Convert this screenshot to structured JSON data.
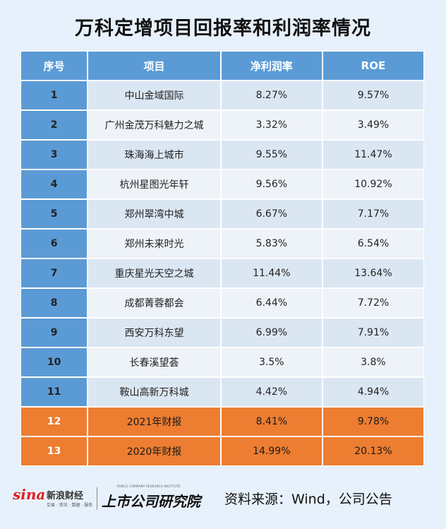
{
  "title": "万科定增项目回报率和利润率情况",
  "table": {
    "headers": [
      "序号",
      "项目",
      "净利润率",
      "ROE"
    ],
    "rows": [
      {
        "no": "1",
        "name": "中山金域国际",
        "margin": "8.27%",
        "roe": "9.57%"
      },
      {
        "no": "2",
        "name": "广州金茂万科魅力之城",
        "margin": "3.32%",
        "roe": "3.49%"
      },
      {
        "no": "3",
        "name": "珠海海上城市",
        "margin": "9.55%",
        "roe": "11.47%"
      },
      {
        "no": "4",
        "name": "杭州星图光年轩",
        "margin": "9.56%",
        "roe": "10.92%"
      },
      {
        "no": "5",
        "name": "郑州翠湾中城",
        "margin": "6.67%",
        "roe": "7.17%"
      },
      {
        "no": "6",
        "name": "郑州未来时光",
        "margin": "5.83%",
        "roe": "6.54%"
      },
      {
        "no": "7",
        "name": "重庆星光天空之城",
        "margin": "11.44%",
        "roe": "13.64%"
      },
      {
        "no": "8",
        "name": "成都菁蓉都会",
        "margin": "6.44%",
        "roe": "7.72%"
      },
      {
        "no": "9",
        "name": "西安万科东望",
        "margin": "6.99%",
        "roe": "7.91%"
      },
      {
        "no": "10",
        "name": "长春溪望荟",
        "margin": "3.5%",
        "roe": "3.8%"
      },
      {
        "no": "11",
        "name": "鞍山高新万科城",
        "margin": "4.42%",
        "roe": "4.94%"
      },
      {
        "no": "12",
        "name": "2021年财报",
        "margin": "8.41%",
        "roe": "9.78%"
      },
      {
        "no": "13",
        "name": "2020年财报",
        "margin": "14.99%",
        "roe": "20.13%"
      }
    ],
    "highlight_color": "#ed7d31",
    "header_color": "#5b9bd5"
  },
  "footer": {
    "sina_mark": "sina",
    "sina_name": "新浪财经",
    "sina_sub": "交易 · 资讯 · 数据 · 服务",
    "inst_tag": "PUBLIC COMPANY RESEARCH INSTITUTE",
    "inst_name": "上市公司研究院",
    "source": "资料来源：Wind，公司公告"
  }
}
